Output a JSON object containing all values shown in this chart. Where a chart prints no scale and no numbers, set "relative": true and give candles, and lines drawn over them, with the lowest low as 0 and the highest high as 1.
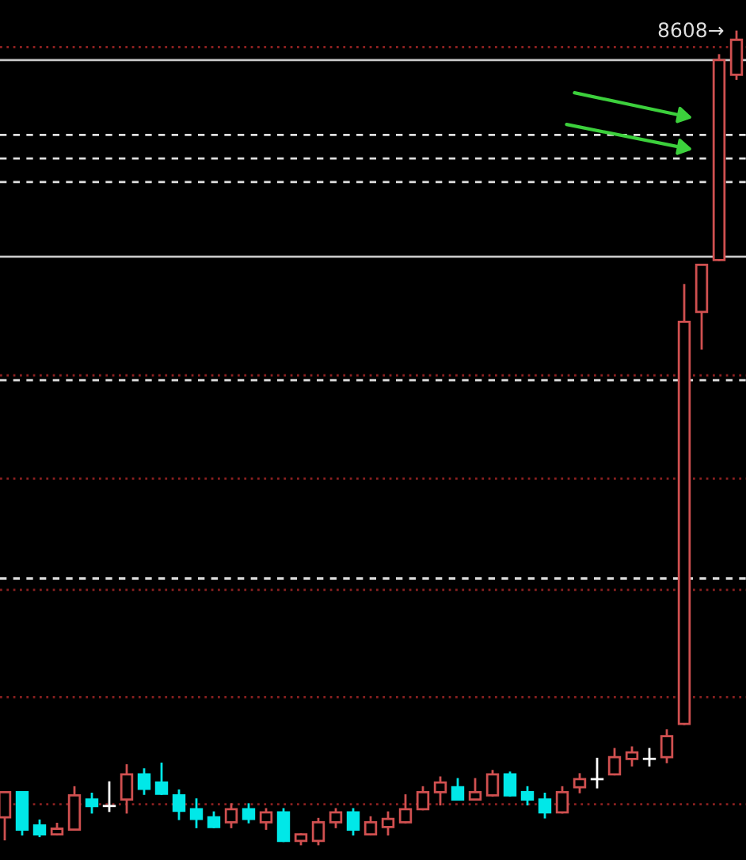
{
  "chart_data": {
    "type": "candlestick",
    "relative": true,
    "categories": [
      null,
      null,
      null,
      null,
      null,
      null,
      null,
      null,
      null,
      null,
      null,
      null,
      null,
      null,
      null,
      null,
      null,
      null,
      null,
      null,
      null,
      null,
      null,
      null,
      null,
      null,
      null,
      null,
      null,
      null,
      null,
      null,
      null,
      null,
      null,
      null,
      null,
      null,
      null,
      null,
      null,
      null,
      null
    ],
    "ohlc": [
      [
        0.033,
        0.064,
        0.006,
        0.064
      ],
      [
        0.064,
        0.064,
        0.012,
        0.018
      ],
      [
        0.023,
        0.029,
        0.01,
        0.012
      ],
      [
        0.012,
        0.025,
        0.012,
        0.019
      ],
      [
        0.018,
        0.07,
        0.018,
        0.06
      ],
      [
        0.055,
        0.062,
        0.039,
        0.047
      ],
      [
        0.047,
        0.076,
        0.041,
        0.047
      ],
      [
        0.055,
        0.097,
        0.039,
        0.086
      ],
      [
        0.086,
        0.092,
        0.062,
        0.068
      ],
      [
        0.076,
        0.099,
        0.062,
        0.062
      ],
      [
        0.06,
        0.066,
        0.031,
        0.041
      ],
      [
        0.043,
        0.055,
        0.021,
        0.031
      ],
      [
        0.033,
        0.039,
        0.021,
        0.021
      ],
      [
        0.027,
        0.049,
        0.021,
        0.043
      ],
      [
        0.043,
        0.049,
        0.027,
        0.031
      ],
      [
        0.027,
        0.043,
        0.019,
        0.039
      ],
      [
        0.039,
        0.043,
        0.004,
        0.004
      ],
      [
        0.004,
        0.012,
        0,
        0.012
      ],
      [
        0.004,
        0.031,
        0,
        0.027
      ],
      [
        0.027,
        0.043,
        0.021,
        0.039
      ],
      [
        0.039,
        0.043,
        0.012,
        0.018
      ],
      [
        0.012,
        0.033,
        0.012,
        0.027
      ],
      [
        0.021,
        0.039,
        0.012,
        0.031
      ],
      [
        0.027,
        0.06,
        0.027,
        0.043
      ],
      [
        0.043,
        0.07,
        0.043,
        0.064
      ],
      [
        0.064,
        0.082,
        0.049,
        0.076
      ],
      [
        0.07,
        0.08,
        0.055,
        0.055
      ],
      [
        0.055,
        0.08,
        0.055,
        0.064
      ],
      [
        0.06,
        0.09,
        0.06,
        0.086
      ],
      [
        0.086,
        0.088,
        0.06,
        0.06
      ],
      [
        0.064,
        0.07,
        0.049,
        0.055
      ],
      [
        0.055,
        0.062,
        0.033,
        0.039
      ],
      [
        0.039,
        0.07,
        0.039,
        0.064
      ],
      [
        0.07,
        0.086,
        0.064,
        0.08
      ],
      [
        0.08,
        0.105,
        0.07,
        0.08
      ],
      [
        0.086,
        0.117,
        0.086,
        0.107
      ],
      [
        0.105,
        0.119,
        0.097,
        0.113
      ],
      [
        0.105,
        0.117,
        0.097,
        0.105
      ],
      [
        0.107,
        0.14,
        0.101,
        0.133
      ],
      [
        0.148,
        0.688,
        0.148,
        0.643
      ],
      [
        0.655,
        0.713,
        0.61,
        0.713
      ],
      [
        0.719,
        0.971,
        0.719,
        0.965
      ],
      [
        0.947,
        1,
        0.942,
        0.99
      ]
    ],
    "colors": [
      "#d05050",
      "#00e8e8",
      "#00e8e8",
      "#d05050",
      "#d05050",
      "#00e8e8",
      "#ffffff",
      "#d05050",
      "#00e8e8",
      "#00e8e8",
      "#00e8e8",
      "#00e8e8",
      "#00e8e8",
      "#d05050",
      "#00e8e8",
      "#d05050",
      "#00e8e8",
      "#d05050",
      "#d05050",
      "#d05050",
      "#00e8e8",
      "#d05050",
      "#d05050",
      "#d05050",
      "#d05050",
      "#d05050",
      "#00e8e8",
      "#d05050",
      "#d05050",
      "#00e8e8",
      "#00e8e8",
      "#00e8e8",
      "#d05050",
      "#d05050",
      "#ffffff",
      "#d05050",
      "#d05050",
      "#ffffff",
      "#d05050",
      "#d05050",
      "#d05050",
      "#d05050",
      "#d05050"
    ],
    "ref_lines": [
      {
        "axis": "y",
        "value": 0.965,
        "color": "#c8c8c8",
        "line_style": "solid"
      },
      {
        "axis": "y",
        "value": 0.723,
        "color": "#c8c8c8",
        "line_style": "solid"
      },
      {
        "axis": "y",
        "value": 0.873,
        "color": "#e0e0e0",
        "line_style": "dashed"
      },
      {
        "axis": "y",
        "value": 0.844,
        "color": "#e0e0e0",
        "line_style": "dashed"
      },
      {
        "axis": "y",
        "value": 0.815,
        "color": "#e0e0e0",
        "line_style": "dashed"
      },
      {
        "axis": "y",
        "value": 0.571,
        "color": "#e0e0e0",
        "line_style": "dashed"
      },
      {
        "axis": "y",
        "value": 0.327,
        "color": "#e0e0e0",
        "line_style": "dashed"
      },
      {
        "axis": "y",
        "value": 0.981,
        "color": "#8a2020",
        "line_style": "dotted"
      },
      {
        "axis": "y",
        "value": 0.577,
        "color": "#8a2020",
        "line_style": "dotted"
      },
      {
        "axis": "y",
        "value": 0.45,
        "color": "#8a2020",
        "line_style": "dotted"
      },
      {
        "axis": "y",
        "value": 0.313,
        "color": "#8a2020",
        "line_style": "dotted"
      },
      {
        "axis": "y",
        "value": 0.181,
        "color": "#8a2020",
        "line_style": "dotted"
      },
      {
        "axis": "y",
        "value": 0.049,
        "color": "#8a2020",
        "line_style": "dotted"
      }
    ],
    "annotations": [
      "8608→"
    ]
  }
}
